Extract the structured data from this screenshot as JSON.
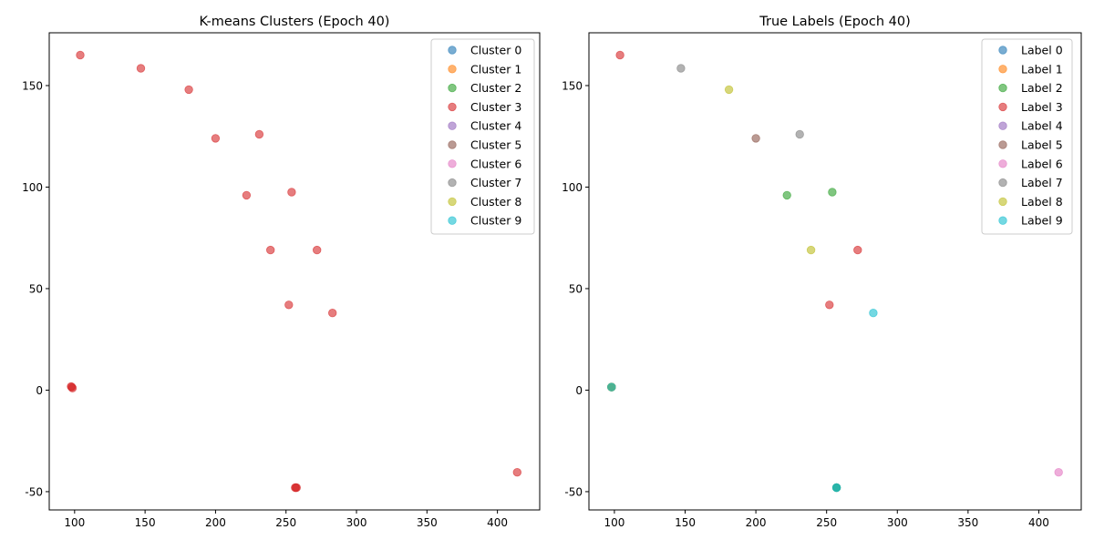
{
  "palette": [
    "#1f77b4",
    "#ff7f0e",
    "#2ca02c",
    "#d62728",
    "#9467bd",
    "#8c564b",
    "#e377c2",
    "#7f7f7f",
    "#bcbd22",
    "#17becf"
  ],
  "chart_data": [
    {
      "type": "scatter",
      "title": "K-means Clusters (Epoch 40)",
      "xlabel": "",
      "ylabel": "",
      "xlim": [
        82,
        430
      ],
      "ylim": [
        -59,
        176
      ],
      "xticks": [
        100,
        150,
        200,
        250,
        300,
        350,
        400
      ],
      "yticks": [
        -50,
        0,
        50,
        100,
        150
      ],
      "grid": false,
      "legend_position": "top-right",
      "legend": [
        "Cluster 0",
        "Cluster 1",
        "Cluster 2",
        "Cluster 3",
        "Cluster 4",
        "Cluster 5",
        "Cluster 6",
        "Cluster 7",
        "Cluster 8",
        "Cluster 9"
      ],
      "points": [
        {
          "x": 98,
          "y": 1.5,
          "series": 3
        },
        {
          "x": 98.5,
          "y": 1,
          "series": 3
        },
        {
          "x": 97.5,
          "y": 1.8,
          "series": 3
        },
        {
          "x": 257,
          "y": -48,
          "series": 3
        },
        {
          "x": 257.5,
          "y": -48,
          "series": 3
        },
        {
          "x": 256.5,
          "y": -48,
          "series": 3
        },
        {
          "x": 104,
          "y": 165,
          "series": 3
        },
        {
          "x": 147,
          "y": 158.5,
          "series": 3
        },
        {
          "x": 181,
          "y": 148,
          "series": 3
        },
        {
          "x": 200,
          "y": 124,
          "series": 3
        },
        {
          "x": 231,
          "y": 126,
          "series": 3
        },
        {
          "x": 222,
          "y": 96,
          "series": 3
        },
        {
          "x": 254,
          "y": 97.5,
          "series": 3
        },
        {
          "x": 239,
          "y": 69,
          "series": 3
        },
        {
          "x": 272,
          "y": 69,
          "series": 3
        },
        {
          "x": 252,
          "y": 42,
          "series": 3
        },
        {
          "x": 283,
          "y": 38,
          "series": 3
        },
        {
          "x": 414,
          "y": -40.5,
          "series": 3
        }
      ]
    },
    {
      "type": "scatter",
      "title": "True Labels (Epoch 40)",
      "xlabel": "",
      "ylabel": "",
      "xlim": [
        82,
        430
      ],
      "ylim": [
        -59,
        176
      ],
      "xticks": [
        100,
        150,
        200,
        250,
        300,
        350,
        400
      ],
      "yticks": [
        -50,
        0,
        50,
        100,
        150
      ],
      "grid": false,
      "legend_position": "top-right",
      "legend": [
        "Label 0",
        "Label 1",
        "Label 2",
        "Label 3",
        "Label 4",
        "Label 5",
        "Label 6",
        "Label 7",
        "Label 8",
        "Label 9"
      ],
      "points": [
        {
          "x": 98,
          "y": 1.5,
          "series": 0
        },
        {
          "x": 98,
          "y": 1.5,
          "series": 1
        },
        {
          "x": 98,
          "y": 1.5,
          "series": 2
        },
        {
          "x": 98,
          "y": 1.5,
          "series": 5
        },
        {
          "x": 98,
          "y": 1.5,
          "series": 8
        },
        {
          "x": 98,
          "y": 1.5,
          "series": 9
        },
        {
          "x": 257,
          "y": -48,
          "series": 0
        },
        {
          "x": 257,
          "y": -48,
          "series": 2
        },
        {
          "x": 257,
          "y": -48,
          "series": 9
        },
        {
          "x": 104,
          "y": 165,
          "series": 3
        },
        {
          "x": 147,
          "y": 158.5,
          "series": 7
        },
        {
          "x": 181,
          "y": 148,
          "series": 8
        },
        {
          "x": 200,
          "y": 124,
          "series": 5
        },
        {
          "x": 231,
          "y": 126,
          "series": 7
        },
        {
          "x": 222,
          "y": 96,
          "series": 2
        },
        {
          "x": 254,
          "y": 97.5,
          "series": 2
        },
        {
          "x": 239,
          "y": 69,
          "series": 8
        },
        {
          "x": 272,
          "y": 69,
          "series": 3
        },
        {
          "x": 252,
          "y": 42,
          "series": 3
        },
        {
          "x": 283,
          "y": 38,
          "series": 9
        },
        {
          "x": 414,
          "y": -40.5,
          "series": 6
        }
      ]
    }
  ]
}
